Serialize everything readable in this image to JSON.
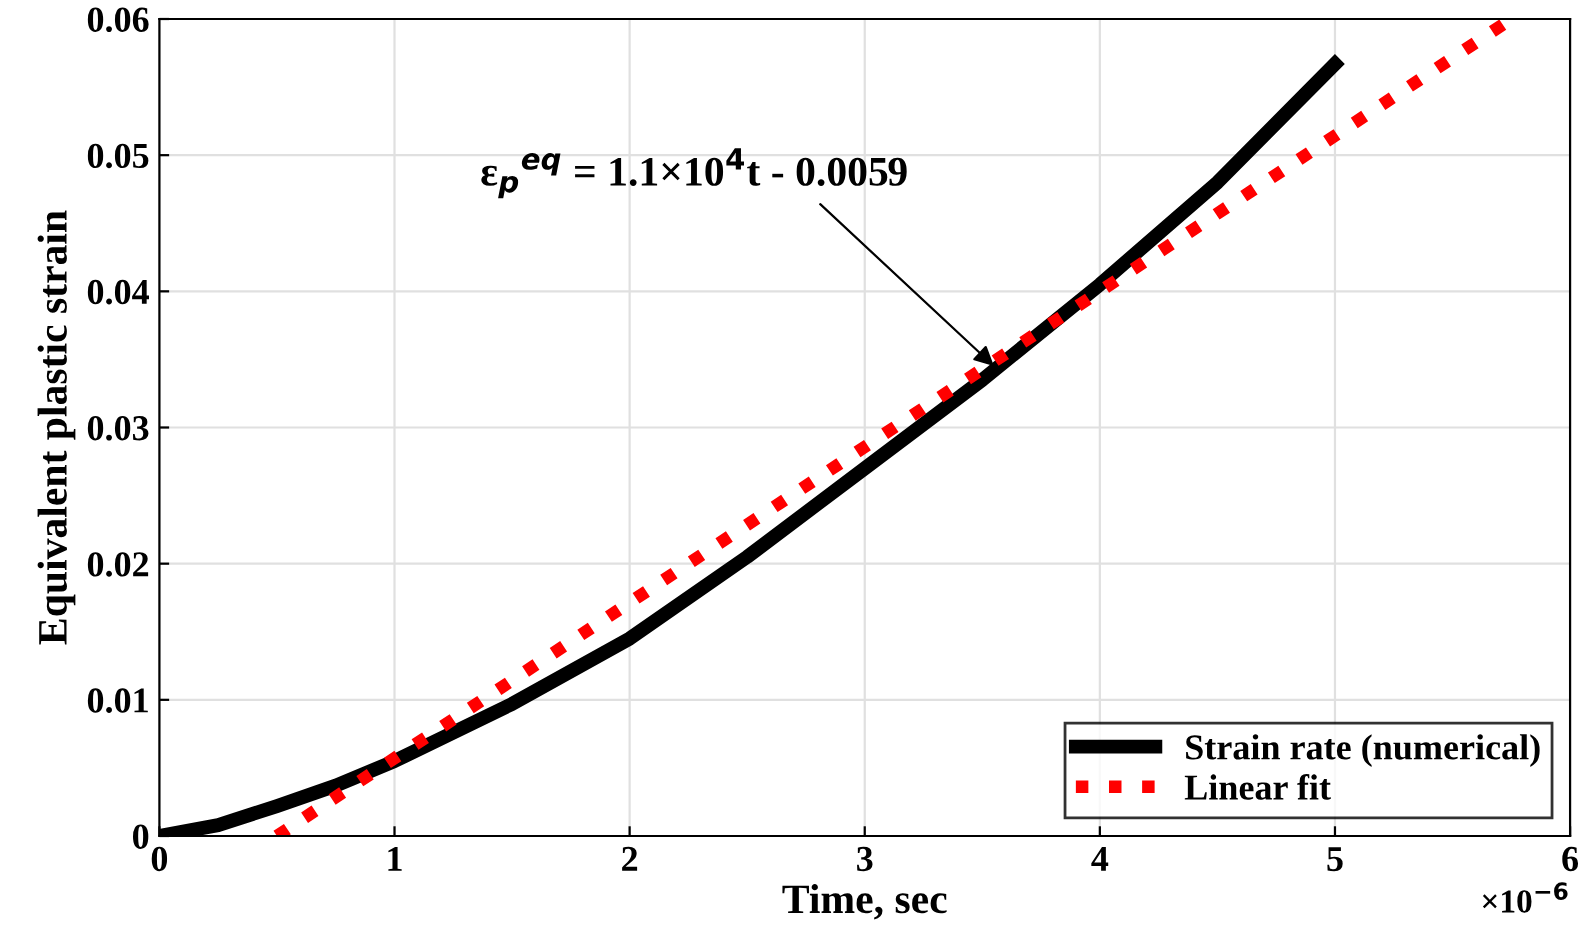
{
  "chart_data": {
    "type": "line",
    "xlabel": "Time, sec",
    "ylabel": "Equivalent plastic strain",
    "xlim": [
      0,
      6
    ],
    "ylim": [
      0,
      0.06
    ],
    "xticks": [
      0,
      1,
      2,
      3,
      4,
      5,
      6
    ],
    "yticks": [
      0,
      0.01,
      0.02,
      0.03,
      0.04,
      0.05,
      0.06
    ],
    "grid": true,
    "legend": "bottom right",
    "series": [
      {
        "name": "Strain rate (numerical)",
        "color": "#000000",
        "line_style": "solid",
        "x": [
          0,
          0.25,
          0.5,
          0.75,
          1,
          1.5,
          2,
          2.5,
          3,
          3.5,
          4,
          4.5,
          5
        ],
        "values": [
          0,
          0.0008,
          0.0022,
          0.0037,
          0.0055,
          0.0097,
          0.0145,
          0.0205,
          0.027,
          0.0335,
          0.0405,
          0.048,
          0.0567
        ]
      },
      {
        "name": "Linear fit",
        "color": "#ff0000",
        "line_style": "dotted",
        "x": [
          0.5,
          5.75
        ],
        "values": [
          0,
          0.06
        ]
      }
    ],
    "annotations": [
      {
        "text": "ε$_{p}$$^{eq}$ = 1.1×10$^{4}$t - 0.0059",
        "x": 3.55,
        "y": 0.0345
      },
      "×10$^{−6}$"
    ]
  }
}
